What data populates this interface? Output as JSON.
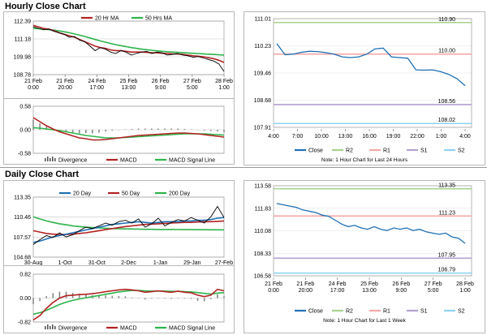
{
  "sections": {
    "hourly_title": "Hourly Close Chart",
    "daily_title": "Daily Close Chart"
  },
  "colors": {
    "close": "#1f6fb4",
    "ma_short": "#b22222",
    "ma_long": "#2db34a",
    "macd": "#b22222",
    "signal": "#2db34a",
    "divergence": "#888888",
    "r2": "#a9d18e",
    "r1": "#f4a6a6",
    "s1": "#b4a0d0",
    "s2": "#8fd3f0",
    "line_series": "#1f6fb4"
  },
  "chart_data": [
    {
      "id": "hourly_price",
      "type": "line",
      "legend": [
        "20 Hr MA",
        "50 Hrs MA"
      ],
      "yticks": [
        "112.39",
        "111.18",
        "109.98",
        "108.78"
      ],
      "ylim": [
        108.78,
        112.39
      ],
      "xticks": [
        [
          "21 Feb",
          "0:00"
        ],
        [
          "21 Feb",
          "20:00"
        ],
        [
          "24 Feb",
          "17:00"
        ],
        [
          "25 Feb",
          "13:00"
        ],
        [
          "26 Feb",
          "9:00"
        ],
        [
          "27 Feb",
          "5:00"
        ],
        [
          "28 Feb",
          "1:00"
        ]
      ],
      "close": [
        112.0,
        111.9,
        111.8,
        111.85,
        111.7,
        111.6,
        111.5,
        111.3,
        111.35,
        111.1,
        111.0,
        110.7,
        110.4,
        110.6,
        110.5,
        110.3,
        110.2,
        110.4,
        110.3,
        110.1,
        110.2,
        110.3,
        110.35,
        110.2,
        110.3,
        110.25,
        110.1,
        110.15,
        110.2,
        110.1,
        110.05,
        109.95,
        110.0,
        109.9,
        109.8,
        109.7,
        109.5,
        109.0
      ],
      "ma20": [
        112.1,
        112.0,
        111.9,
        111.85,
        111.75,
        111.6,
        111.5,
        111.4,
        111.3,
        111.15,
        111.0,
        110.85,
        110.7,
        110.6,
        110.55,
        110.45,
        110.4,
        110.4,
        110.35,
        110.3,
        110.3,
        110.3,
        110.28,
        110.25,
        110.25,
        110.22,
        110.2,
        110.18,
        110.17,
        110.15,
        110.1,
        110.05,
        110.02,
        109.98,
        109.92,
        109.85,
        109.75,
        109.6
      ],
      "ma50": [
        111.9,
        111.88,
        111.85,
        111.82,
        111.78,
        111.73,
        111.67,
        111.6,
        111.52,
        111.44,
        111.35,
        111.25,
        111.15,
        111.05,
        110.97,
        110.88,
        110.8,
        110.73,
        110.67,
        110.6,
        110.55,
        110.5,
        110.46,
        110.42,
        110.38,
        110.35,
        110.32,
        110.3,
        110.28,
        110.26,
        110.24,
        110.22,
        110.2,
        110.18,
        110.16,
        110.14,
        110.12,
        110.1
      ]
    },
    {
      "id": "hourly_macd",
      "type": "line",
      "legend": [
        "Divergence",
        "MACD",
        "MACD Signal Line"
      ],
      "yticks": [
        "0.58",
        "0.00",
        "-0.58"
      ],
      "ylim": [
        -0.58,
        0.58
      ],
      "macd": [
        0.3,
        0.2,
        0.1,
        0.02,
        -0.05,
        -0.1,
        -0.15,
        -0.2,
        -0.22,
        -0.25,
        -0.25,
        -0.24,
        -0.22,
        -0.2,
        -0.18,
        -0.16,
        -0.14,
        -0.13,
        -0.12,
        -0.11,
        -0.1,
        -0.09,
        -0.08,
        -0.08,
        -0.09,
        -0.1,
        -0.12,
        -0.14,
        -0.16,
        -0.18
      ],
      "signal": [
        0.05,
        0.04,
        0.02,
        0.0,
        -0.02,
        -0.05,
        -0.08,
        -0.11,
        -0.14,
        -0.16,
        -0.18,
        -0.2,
        -0.2,
        -0.2,
        -0.19,
        -0.18,
        -0.17,
        -0.16,
        -0.15,
        -0.14,
        -0.13,
        -0.12,
        -0.11,
        -0.1,
        -0.1,
        -0.1,
        -0.1,
        -0.11,
        -0.12,
        -0.13
      ],
      "divergence": [
        0.25,
        0.16,
        0.08,
        0.02,
        -0.03,
        -0.05,
        -0.07,
        -0.09,
        -0.08,
        -0.09,
        -0.07,
        -0.04,
        -0.02,
        0.0,
        0.01,
        0.02,
        0.03,
        0.03,
        0.03,
        0.03,
        0.03,
        0.03,
        0.03,
        0.02,
        0.01,
        0.0,
        -0.02,
        -0.03,
        -0.04,
        -0.05
      ]
    },
    {
      "id": "hourly_24h",
      "type": "line",
      "levels": [
        {
          "name": "R2",
          "value": 110.9,
          "label": "110.90"
        },
        {
          "name": "R1",
          "value": 110.0,
          "label": "110.00"
        },
        {
          "name": "S1",
          "value": 108.56,
          "label": "108.56"
        },
        {
          "name": "S2",
          "value": 108.02,
          "label": "108.02"
        }
      ],
      "yticks": [
        "111.01",
        "110.23",
        "109.46",
        "108.68",
        "107.91"
      ],
      "ylim": [
        107.91,
        111.01
      ],
      "xticks": [
        "4:00",
        "7:00",
        "10:00",
        "13:00",
        "16:00",
        "19:00",
        "22:00",
        "1:00",
        "4:00"
      ],
      "values": [
        110.3,
        109.98,
        110.0,
        110.05,
        110.08,
        110.07,
        110.04,
        110.0,
        109.92,
        109.9,
        109.92,
        110.0,
        110.15,
        110.17,
        109.92,
        109.9,
        109.88,
        109.55,
        109.54,
        109.55,
        109.5,
        109.42,
        109.3,
        109.1
      ],
      "legend": [
        "Close",
        "R2",
        "R1",
        "S1",
        "S2"
      ],
      "note": "Note: 1 Hour Chart for Last 24 Hours"
    },
    {
      "id": "daily_price",
      "type": "line",
      "legend": [
        "20 Day",
        "50 Day",
        "200 Day"
      ],
      "yticks": [
        "113.35",
        "110.46",
        "107.57",
        "104.68"
      ],
      "ylim": [
        104.68,
        113.35
      ],
      "xticks": [
        "30-Aug",
        "1-Oct",
        "31-Oct",
        "2-Dec",
        "1-Jan",
        "29-Jan",
        "27-Feb"
      ],
      "close": [
        106.5,
        107.2,
        107.8,
        107.5,
        108.2,
        107.6,
        107.9,
        108.5,
        109.0,
        108.8,
        109.2,
        109.6,
        109.3,
        109.8,
        110.0,
        109.6,
        110.2,
        109.0,
        109.5,
        110.3,
        109.2,
        109.7,
        110.1,
        109.9,
        110.4,
        110.0,
        109.6,
        110.5,
        112.0,
        110.4
      ],
      "ma20": [
        106.8,
        107.0,
        107.3,
        107.6,
        107.8,
        108.0,
        108.2,
        108.4,
        108.6,
        108.8,
        109.0,
        109.2,
        109.4,
        109.5,
        109.6,
        109.7,
        109.8,
        109.7,
        109.6,
        109.7,
        109.8,
        109.8,
        109.8,
        109.9,
        109.9,
        110.0,
        110.0,
        110.1,
        110.3,
        110.4
      ],
      "ma50": [
        108.5,
        108.3,
        108.1,
        108.0,
        107.95,
        107.95,
        108.0,
        108.1,
        108.2,
        108.35,
        108.5,
        108.65,
        108.8,
        108.95,
        109.1,
        109.2,
        109.3,
        109.4,
        109.45,
        109.5,
        109.55,
        109.6,
        109.65,
        109.7,
        109.7,
        109.75,
        109.8,
        109.8,
        109.85,
        109.9
      ],
      "ma200": [
        110.5,
        110.2,
        109.9,
        109.7,
        109.5,
        109.35,
        109.2,
        109.1,
        109.0,
        108.95,
        108.9,
        108.85,
        108.8,
        108.78,
        108.76,
        108.74,
        108.72,
        108.7,
        108.7,
        108.68,
        108.68,
        108.67,
        108.66,
        108.65,
        108.65,
        108.64,
        108.64,
        108.63,
        108.63,
        108.62
      ]
    },
    {
      "id": "daily_macd",
      "type": "line",
      "legend": [
        "Divergence",
        "MACD",
        "MACD Signal Line"
      ],
      "yticks": [
        "0.82",
        "0.00",
        "-0.82"
      ],
      "ylim": [
        -0.82,
        0.82
      ],
      "macd": [
        -0.75,
        -0.6,
        -0.35,
        -0.15,
        0.0,
        0.08,
        0.1,
        0.12,
        0.13,
        0.15,
        0.18,
        0.22,
        0.25,
        0.28,
        0.3,
        0.28,
        0.25,
        0.2,
        0.22,
        0.25,
        0.22,
        0.2,
        0.24,
        0.2,
        0.18,
        0.1,
        0.05,
        0.1,
        0.3,
        0.25
      ],
      "signal": [
        -0.55,
        -0.5,
        -0.42,
        -0.32,
        -0.22,
        -0.14,
        -0.08,
        -0.03,
        0.01,
        0.05,
        0.09,
        0.13,
        0.17,
        0.21,
        0.24,
        0.26,
        0.26,
        0.25,
        0.24,
        0.24,
        0.24,
        0.23,
        0.23,
        0.22,
        0.21,
        0.19,
        0.16,
        0.14,
        0.17,
        0.19
      ],
      "divergence": [
        -0.2,
        -0.1,
        0.07,
        0.17,
        0.22,
        0.22,
        0.18,
        0.15,
        0.12,
        0.1,
        0.09,
        0.09,
        0.08,
        0.07,
        0.06,
        0.02,
        -0.01,
        -0.05,
        -0.02,
        0.01,
        -0.02,
        -0.03,
        0.01,
        -0.02,
        -0.03,
        -0.09,
        -0.11,
        -0.04,
        0.13,
        0.06
      ]
    },
    {
      "id": "daily_week",
      "type": "line",
      "levels": [
        {
          "name": "R2",
          "value": 113.35,
          "label": "113.35"
        },
        {
          "name": "R1",
          "value": 111.23,
          "label": "111.23"
        },
        {
          "name": "S1",
          "value": 107.95,
          "label": "107.95"
        },
        {
          "name": "S2",
          "value": 106.79,
          "label": "106.79"
        }
      ],
      "yticks": [
        "113.58",
        "111.83",
        "110.08",
        "108.33",
        "106.58"
      ],
      "ylim": [
        106.58,
        113.58
      ],
      "xticks": [
        [
          "21 Feb",
          "0:00"
        ],
        [
          "21 Feb",
          "20:00"
        ],
        [
          "24 Feb",
          "17:00"
        ],
        [
          "25 Feb",
          "13:00"
        ],
        [
          "26 Feb",
          "9:00"
        ],
        [
          "27 Feb",
          "5:00"
        ],
        [
          "28 Feb",
          "1:00"
        ]
      ],
      "values": [
        112.2,
        112.1,
        112.0,
        111.9,
        111.7,
        111.6,
        111.5,
        111.3,
        111.2,
        110.9,
        110.6,
        110.4,
        110.5,
        110.3,
        110.2,
        110.4,
        110.2,
        110.1,
        110.3,
        110.2,
        110.3,
        110.1,
        110.2,
        110.0,
        109.9,
        109.8,
        109.9,
        109.6,
        109.5,
        109.1
      ],
      "legend": [
        "Close",
        "R2",
        "R1",
        "S1",
        "S2"
      ],
      "note": "Note: 1 Hour Chart for Last 1 Week"
    }
  ]
}
